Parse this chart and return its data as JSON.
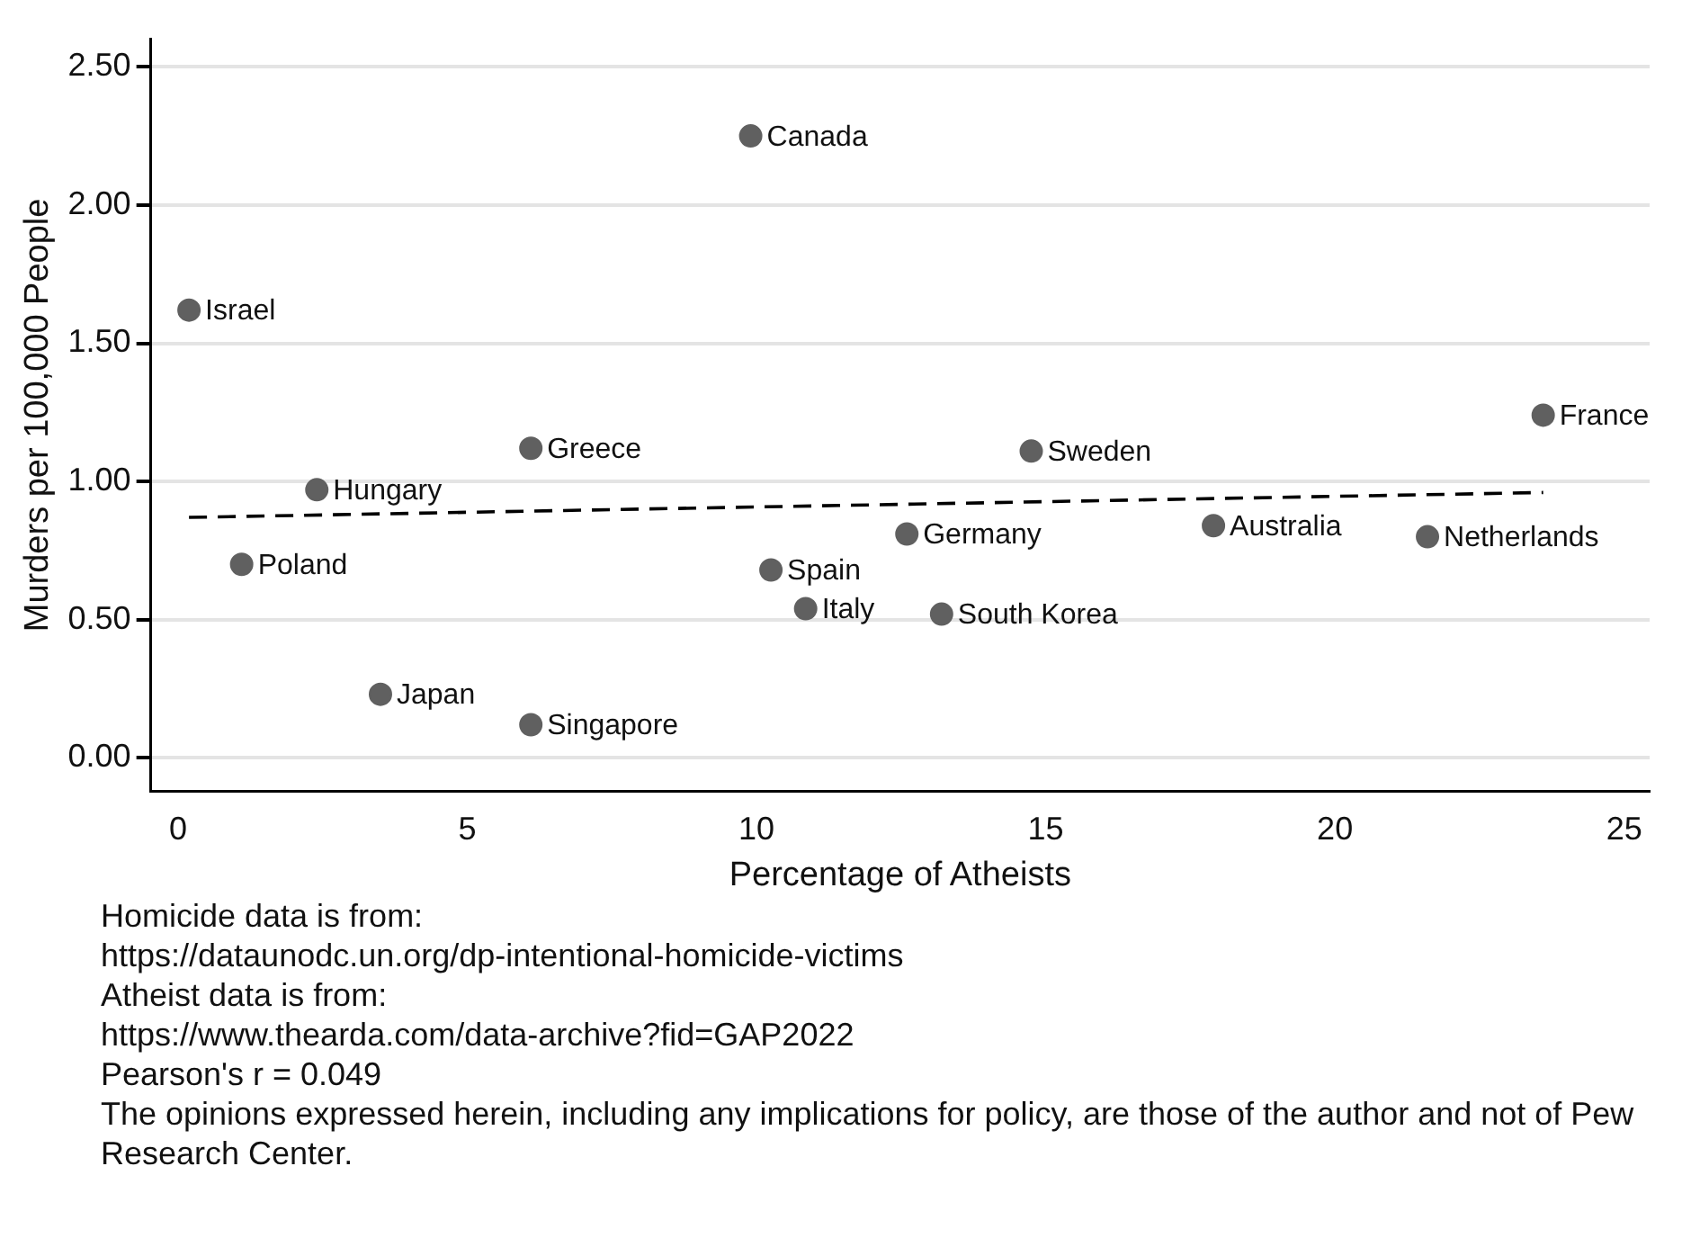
{
  "chart_data": {
    "type": "scatter",
    "xlabel": "Percentage of Atheists",
    "ylabel": "Murders per 100,000 People",
    "xlim": [
      -0.47,
      25.44
    ],
    "xticks": [
      0,
      5,
      10,
      15,
      20,
      25
    ],
    "ylim": [
      -0.12,
      2.6
    ],
    "yticks": [
      {
        "value": 0,
        "label": "0.00"
      },
      {
        "value": 0.5,
        "label": "0.50"
      },
      {
        "value": 1,
        "label": "1.00"
      },
      {
        "value": 1.5,
        "label": "1.50"
      },
      {
        "value": 2,
        "label": "2.00"
      },
      {
        "value": 2.5,
        "label": "2.50"
      }
    ],
    "grid": "y",
    "legend": false,
    "marker": "circle",
    "series": [
      {
        "name": "Israel",
        "color": "#606060",
        "x": [
          0.19
        ],
        "values": [
          1.62
        ]
      },
      {
        "name": "Canada",
        "color": "#606060",
        "x": [
          9.9
        ],
        "values": [
          2.25
        ]
      },
      {
        "name": "Hungary",
        "color": "#606060",
        "x": [
          2.4
        ],
        "values": [
          0.97
        ]
      },
      {
        "name": "Greece",
        "color": "#606060",
        "x": [
          6.1
        ],
        "values": [
          1.12
        ]
      },
      {
        "name": "Poland",
        "color": "#606060",
        "x": [
          1.1
        ],
        "values": [
          0.7
        ]
      },
      {
        "name": "Japan",
        "color": "#606060",
        "x": [
          3.5
        ],
        "values": [
          0.23
        ]
      },
      {
        "name": "Singapore",
        "color": "#606060",
        "x": [
          6.1
        ],
        "values": [
          0.12
        ]
      },
      {
        "name": "Spain",
        "color": "#606060",
        "x": [
          10.25
        ],
        "values": [
          0.68
        ]
      },
      {
        "name": "Italy",
        "color": "#606060",
        "x": [
          10.85
        ],
        "values": [
          0.54
        ]
      },
      {
        "name": "Germany",
        "color": "#606060",
        "x": [
          12.6
        ],
        "values": [
          0.81
        ]
      },
      {
        "name": "South Korea",
        "color": "#606060",
        "x": [
          13.2
        ],
        "values": [
          0.52
        ]
      },
      {
        "name": "Sweden",
        "color": "#606060",
        "x": [
          14.75
        ],
        "values": [
          1.11
        ]
      },
      {
        "name": "Australia",
        "color": "#606060",
        "x": [
          17.9
        ],
        "values": [
          0.84
        ]
      },
      {
        "name": "Netherlands",
        "color": "#606060",
        "x": [
          21.6
        ],
        "values": [
          0.8
        ]
      },
      {
        "name": "France",
        "color": "#606060",
        "x": [
          23.6
        ],
        "values": [
          1.24
        ]
      },
      {
        "type": "line",
        "color": "#000000",
        "line_style": "dashed",
        "marker": "none",
        "x": [
          0.19,
          23.6
        ],
        "values": [
          0.87,
          0.96
        ]
      }
    ],
    "annotations": [
      "Homicide data is from:",
      "https://dataunodc.un.org/dp-intentional-homicide-victims",
      "Atheist  data is from:",
      "https://www.thearda.com/data-archive?fid=GAP2022",
      "Pearson's r = 0.049",
      "The opinions expressed herein, including any implications for policy, are those of the author and not of Pew Research Center."
    ]
  }
}
